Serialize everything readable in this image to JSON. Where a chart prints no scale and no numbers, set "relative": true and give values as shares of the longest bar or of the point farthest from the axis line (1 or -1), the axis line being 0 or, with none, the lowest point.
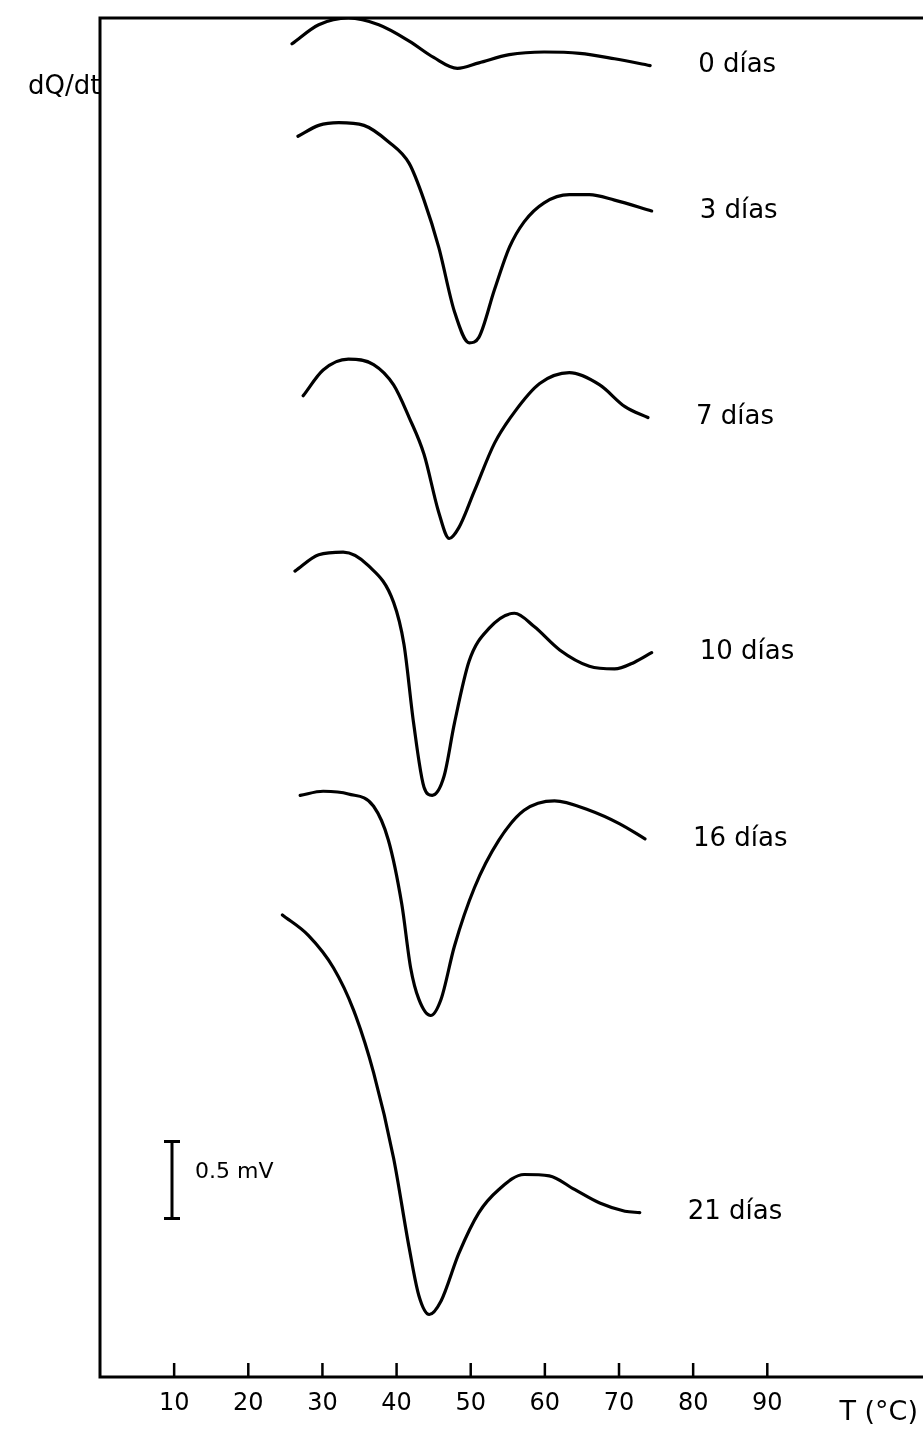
{
  "chart_data": {
    "type": "line",
    "relative": true,
    "xlabel": "T (°C)",
    "ylabel": "dQ/dt",
    "xlim": [
      0,
      111
    ],
    "xticks": [
      10,
      20,
      30,
      40,
      50,
      60,
      70,
      80,
      90
    ],
    "grid": false,
    "legend": false,
    "marker": "none",
    "line_style": "solid",
    "annotations": [
      "0.5 mV"
    ],
    "series": [
      {
        "name": "0 días",
        "color": "#000000",
        "x": [
          25.9,
          29.5,
          33.5,
          37.6,
          41.7,
          45.0,
          48.2,
          51.1,
          55.2,
          59.9,
          64.7,
          69.4,
          74.2
        ],
        "values": [
          0.981,
          0.995,
          1.0,
          0.995,
          0.983,
          0.971,
          0.963,
          0.967,
          0.973,
          0.975,
          0.974,
          0.97,
          0.965
        ]
      },
      {
        "name": "3 días",
        "color": "#000000",
        "x": [
          26.7,
          29.5,
          32.2,
          35.6,
          38.9,
          41.7,
          43.7,
          45.7,
          47.8,
          49.8,
          51.1,
          53.2,
          55.2,
          57.2,
          59.9,
          63.3,
          66.0,
          69.4,
          74.4
        ],
        "values": [
          0.913,
          0.921,
          0.923,
          0.921,
          0.909,
          0.893,
          0.866,
          0.831,
          0.784,
          0.761,
          0.765,
          0.8,
          0.831,
          0.85,
          0.864,
          0.87,
          0.87,
          0.866,
          0.858
        ]
      },
      {
        "name": "7 días",
        "color": "#000000",
        "x": [
          27.4,
          30.1,
          33.5,
          36.9,
          39.6,
          41.7,
          43.7,
          45.7,
          47.1,
          48.4,
          50.5,
          53.2,
          55.9,
          59.3,
          63.3,
          67.4,
          70.8,
          73.9
        ],
        "values": [
          0.722,
          0.741,
          0.749,
          0.745,
          0.73,
          0.706,
          0.679,
          0.636,
          0.617,
          0.625,
          0.652,
          0.687,
          0.71,
          0.731,
          0.739,
          0.73,
          0.714,
          0.706
        ]
      },
      {
        "name": "10 días",
        "color": "#000000",
        "x": [
          26.3,
          29.5,
          32.8,
          36.2,
          39.6,
          41.0,
          42.3,
          43.7,
          44.8,
          46.4,
          47.8,
          49.8,
          52.5,
          55.9,
          58.6,
          62.0,
          66.0,
          69.4,
          72.1,
          74.4
        ],
        "values": [
          0.593,
          0.605,
          0.607,
          0.597,
          0.57,
          0.539,
          0.481,
          0.434,
          0.428,
          0.442,
          0.481,
          0.527,
          0.551,
          0.562,
          0.552,
          0.535,
          0.523,
          0.521,
          0.526,
          0.533
        ]
      },
      {
        "name": "16 días",
        "color": "#000000",
        "x": [
          27.0,
          30.1,
          33.5,
          36.9,
          38.9,
          40.7,
          41.9,
          43.0,
          44.6,
          46.0,
          47.8,
          50.5,
          53.8,
          57.2,
          61.3,
          66.0,
          70.1,
          73.5
        ],
        "values": [
          0.428,
          0.431,
          0.429,
          0.42,
          0.395,
          0.348,
          0.301,
          0.278,
          0.266,
          0.278,
          0.317,
          0.36,
          0.395,
          0.417,
          0.424,
          0.417,
          0.407,
          0.396
        ]
      },
      {
        "name": "21 días",
        "color": "#000000",
        "x": [
          24.6,
          28.1,
          31.5,
          34.2,
          36.9,
          39.6,
          41.7,
          43.0,
          44.4,
          46.0,
          48.4,
          51.1,
          53.8,
          57.2,
          60.6,
          64.0,
          67.4,
          70.8,
          72.8
        ],
        "values": [
          0.34,
          0.325,
          0.301,
          0.27,
          0.224,
          0.161,
          0.095,
          0.06,
          0.046,
          0.056,
          0.091,
          0.121,
          0.138,
          0.149,
          0.148,
          0.138,
          0.128,
          0.122,
          0.121
        ]
      }
    ]
  }
}
